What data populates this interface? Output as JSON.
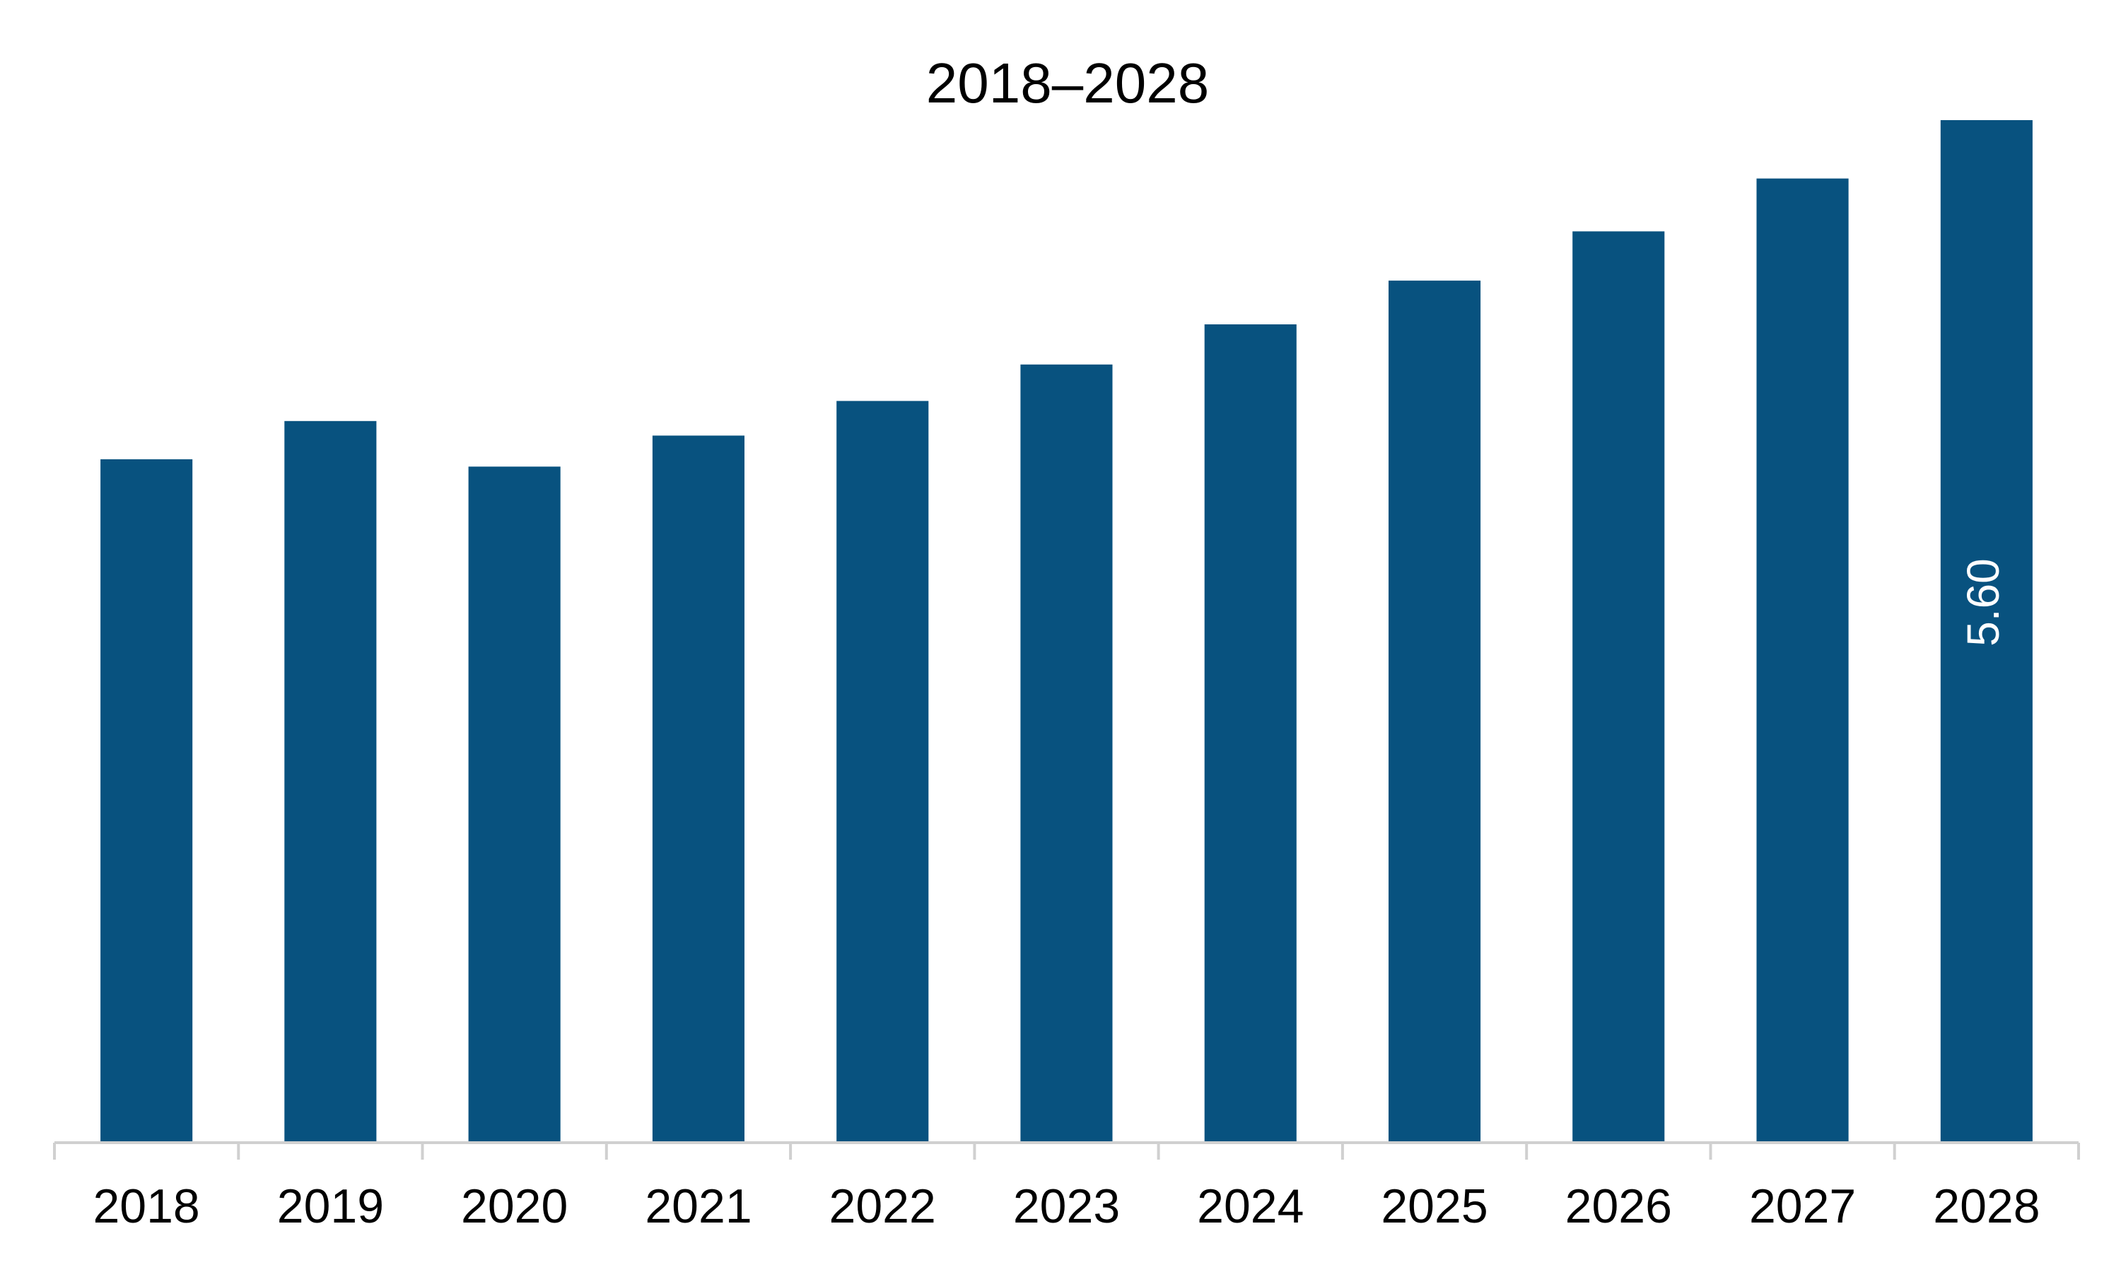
{
  "chart_data": {
    "type": "bar",
    "title": "2018–2028",
    "xlabel": "",
    "ylabel": "",
    "categories": [
      "2018",
      "2019",
      "2020",
      "2021",
      "2022",
      "2023",
      "2024",
      "2025",
      "2026",
      "2027",
      "2028"
    ],
    "values": [
      3.74,
      3.95,
      3.7,
      3.87,
      4.06,
      4.26,
      4.48,
      4.72,
      4.99,
      5.28,
      5.6
    ],
    "data_labels": [
      "",
      "",
      "",
      "",
      "",
      "",
      "",
      "",
      "",
      "",
      "5.60"
    ],
    "ylim": [
      0,
      5.6
    ],
    "grid": false,
    "legend": "none",
    "bar_color": "#08527f",
    "axis_color": "#d0d0d0"
  }
}
